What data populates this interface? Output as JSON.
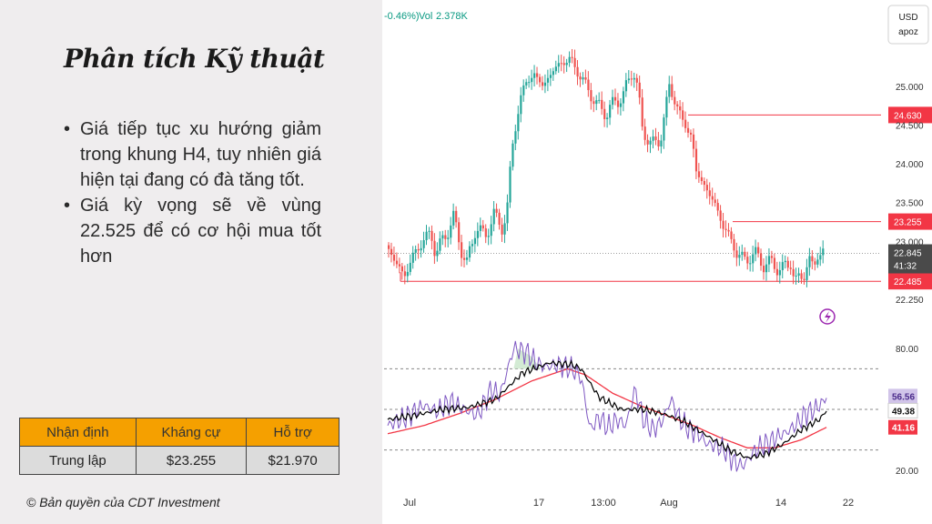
{
  "slide": {
    "title": "Phân tích Kỹ thuật",
    "bullets": [
      "Giá tiếp tục xu hướng giảm trong khung H4, tuy nhiên giá hiện tại đang có đà tăng tốt.",
      "Giá kỳ vọng sẽ về vùng 22.525 để có cơ hội mua tốt hơn"
    ],
    "table": {
      "headers": [
        "Nhận định",
        "Kháng cự",
        "Hỗ trợ"
      ],
      "row": [
        "Trung lập",
        "$23.255",
        "$21.970"
      ]
    },
    "copyright": "© Bản quyền của CDT Investment"
  },
  "chart_data": {
    "type": "candlestick",
    "header_partial": "-0.46%)",
    "volume_label": "Vol",
    "volume_value": "2.378K",
    "currency": "USD",
    "unit": "apoz",
    "price_axis_ticks": [
      25.0,
      24.5,
      24.0,
      23.5,
      23.0,
      22.25
    ],
    "price_axis_labels": [
      "25.000",
      "24.500",
      "24.000",
      "23.500",
      "23.000",
      "22.250"
    ],
    "y_range": [
      22.1,
      25.55
    ],
    "x_ticks": [
      "Jul",
      "17",
      "13:00",
      "Aug",
      "14",
      "22"
    ],
    "current_price": "22.845",
    "countdown": "41:32",
    "horizontal_levels": [
      {
        "value": 24.63,
        "label": "24.630"
      },
      {
        "value": 23.255,
        "label": "23.255"
      },
      {
        "value": 22.485,
        "label": "22.485"
      }
    ],
    "price_path": [
      [
        0,
        22.95
      ],
      [
        10,
        22.75
      ],
      [
        20,
        22.55
      ],
      [
        30,
        22.8
      ],
      [
        40,
        23.0
      ],
      [
        50,
        23.1
      ],
      [
        55,
        22.85
      ],
      [
        65,
        23.05
      ],
      [
        75,
        23.3
      ],
      [
        85,
        22.85
      ],
      [
        90,
        22.7
      ],
      [
        100,
        23.2
      ],
      [
        110,
        23.05
      ],
      [
        120,
        23.35
      ],
      [
        130,
        23.15
      ],
      [
        135,
        23.45
      ],
      [
        140,
        24.2
      ],
      [
        145,
        24.55
      ],
      [
        150,
        24.85
      ],
      [
        155,
        25.05
      ],
      [
        165,
        25.15
      ],
      [
        175,
        25.0
      ],
      [
        185,
        25.2
      ],
      [
        195,
        25.3
      ],
      [
        205,
        25.35
      ],
      [
        215,
        25.15
      ],
      [
        225,
        24.95
      ],
      [
        235,
        24.75
      ],
      [
        245,
        24.65
      ],
      [
        255,
        24.8
      ],
      [
        265,
        24.9
      ],
      [
        275,
        25.25
      ],
      [
        280,
        24.95
      ],
      [
        285,
        24.45
      ],
      [
        295,
        24.25
      ],
      [
        305,
        24.3
      ],
      [
        315,
        25.0
      ],
      [
        320,
        24.85
      ],
      [
        330,
        24.55
      ],
      [
        340,
        24.35
      ],
      [
        345,
        23.9
      ],
      [
        355,
        23.7
      ],
      [
        365,
        23.5
      ],
      [
        375,
        23.2
      ],
      [
        380,
        23.1
      ],
      [
        390,
        22.85
      ],
      [
        400,
        22.75
      ],
      [
        410,
        22.85
      ],
      [
        420,
        22.7
      ],
      [
        430,
        22.72
      ],
      [
        440,
        22.62
      ],
      [
        450,
        22.75
      ],
      [
        455,
        22.45
      ],
      [
        465,
        22.6
      ],
      [
        470,
        22.75
      ],
      [
        475,
        22.65
      ],
      [
        480,
        22.85
      ],
      [
        486,
        22.845
      ]
    ],
    "rsi_axis_labels": [
      "80.00",
      "20.00"
    ],
    "rsi_values": {
      "rsi": "56.56",
      "ma_fast": "49.38",
      "ma_slow": "41.16"
    },
    "rsi_levels": [
      70,
      50,
      30
    ],
    "rsi_path": [
      [
        0,
        42
      ],
      [
        20,
        46
      ],
      [
        40,
        52
      ],
      [
        55,
        49
      ],
      [
        70,
        54
      ],
      [
        85,
        50
      ],
      [
        100,
        47
      ],
      [
        115,
        60
      ],
      [
        125,
        57
      ],
      [
        140,
        80
      ],
      [
        155,
        78
      ],
      [
        165,
        73
      ],
      [
        175,
        71
      ],
      [
        190,
        72
      ],
      [
        205,
        70
      ],
      [
        215,
        66
      ],
      [
        225,
        40
      ],
      [
        235,
        46
      ],
      [
        245,
        41
      ],
      [
        255,
        45
      ],
      [
        265,
        42
      ],
      [
        275,
        60
      ],
      [
        285,
        44
      ],
      [
        295,
        40
      ],
      [
        305,
        44
      ],
      [
        315,
        55
      ],
      [
        325,
        45
      ],
      [
        335,
        40
      ],
      [
        345,
        38
      ],
      [
        355,
        33
      ],
      [
        365,
        32
      ],
      [
        375,
        30
      ],
      [
        385,
        24
      ],
      [
        395,
        22
      ],
      [
        405,
        28
      ],
      [
        415,
        32
      ],
      [
        425,
        34
      ],
      [
        435,
        37
      ],
      [
        445,
        39
      ],
      [
        455,
        43
      ],
      [
        465,
        48
      ],
      [
        475,
        50
      ],
      [
        485,
        54
      ],
      [
        488,
        56.56
      ]
    ],
    "rsi_ma_fast": [
      [
        0,
        45
      ],
      [
        30,
        47
      ],
      [
        60,
        50
      ],
      [
        90,
        51
      ],
      [
        120,
        55
      ],
      [
        150,
        68
      ],
      [
        180,
        73
      ],
      [
        205,
        72
      ],
      [
        215,
        70
      ],
      [
        235,
        56
      ],
      [
        260,
        50
      ],
      [
        285,
        50
      ],
      [
        305,
        48
      ],
      [
        330,
        44
      ],
      [
        355,
        37
      ],
      [
        380,
        30
      ],
      [
        400,
        26
      ],
      [
        420,
        28
      ],
      [
        440,
        33
      ],
      [
        460,
        40
      ],
      [
        480,
        45
      ],
      [
        488,
        49.38
      ]
    ],
    "rsi_ma_slow": [
      [
        0,
        38
      ],
      [
        40,
        42
      ],
      [
        80,
        48
      ],
      [
        120,
        55
      ],
      [
        160,
        64
      ],
      [
        200,
        70
      ],
      [
        220,
        67
      ],
      [
        250,
        58
      ],
      [
        280,
        52
      ],
      [
        310,
        47
      ],
      [
        340,
        42
      ],
      [
        370,
        36
      ],
      [
        400,
        31
      ],
      [
        430,
        31
      ],
      [
        460,
        35
      ],
      [
        488,
        41.16
      ]
    ],
    "rsi_y_range": [
      15,
      85
    ],
    "colors": {
      "up": "#26a69a",
      "down": "#ef5350",
      "level": "#f23645",
      "rsi": "#7e57c2",
      "rsi_ma_fast": "#000000",
      "rsi_ma_slow": "#f23645",
      "price_tag": "#4a4a4a"
    }
  }
}
